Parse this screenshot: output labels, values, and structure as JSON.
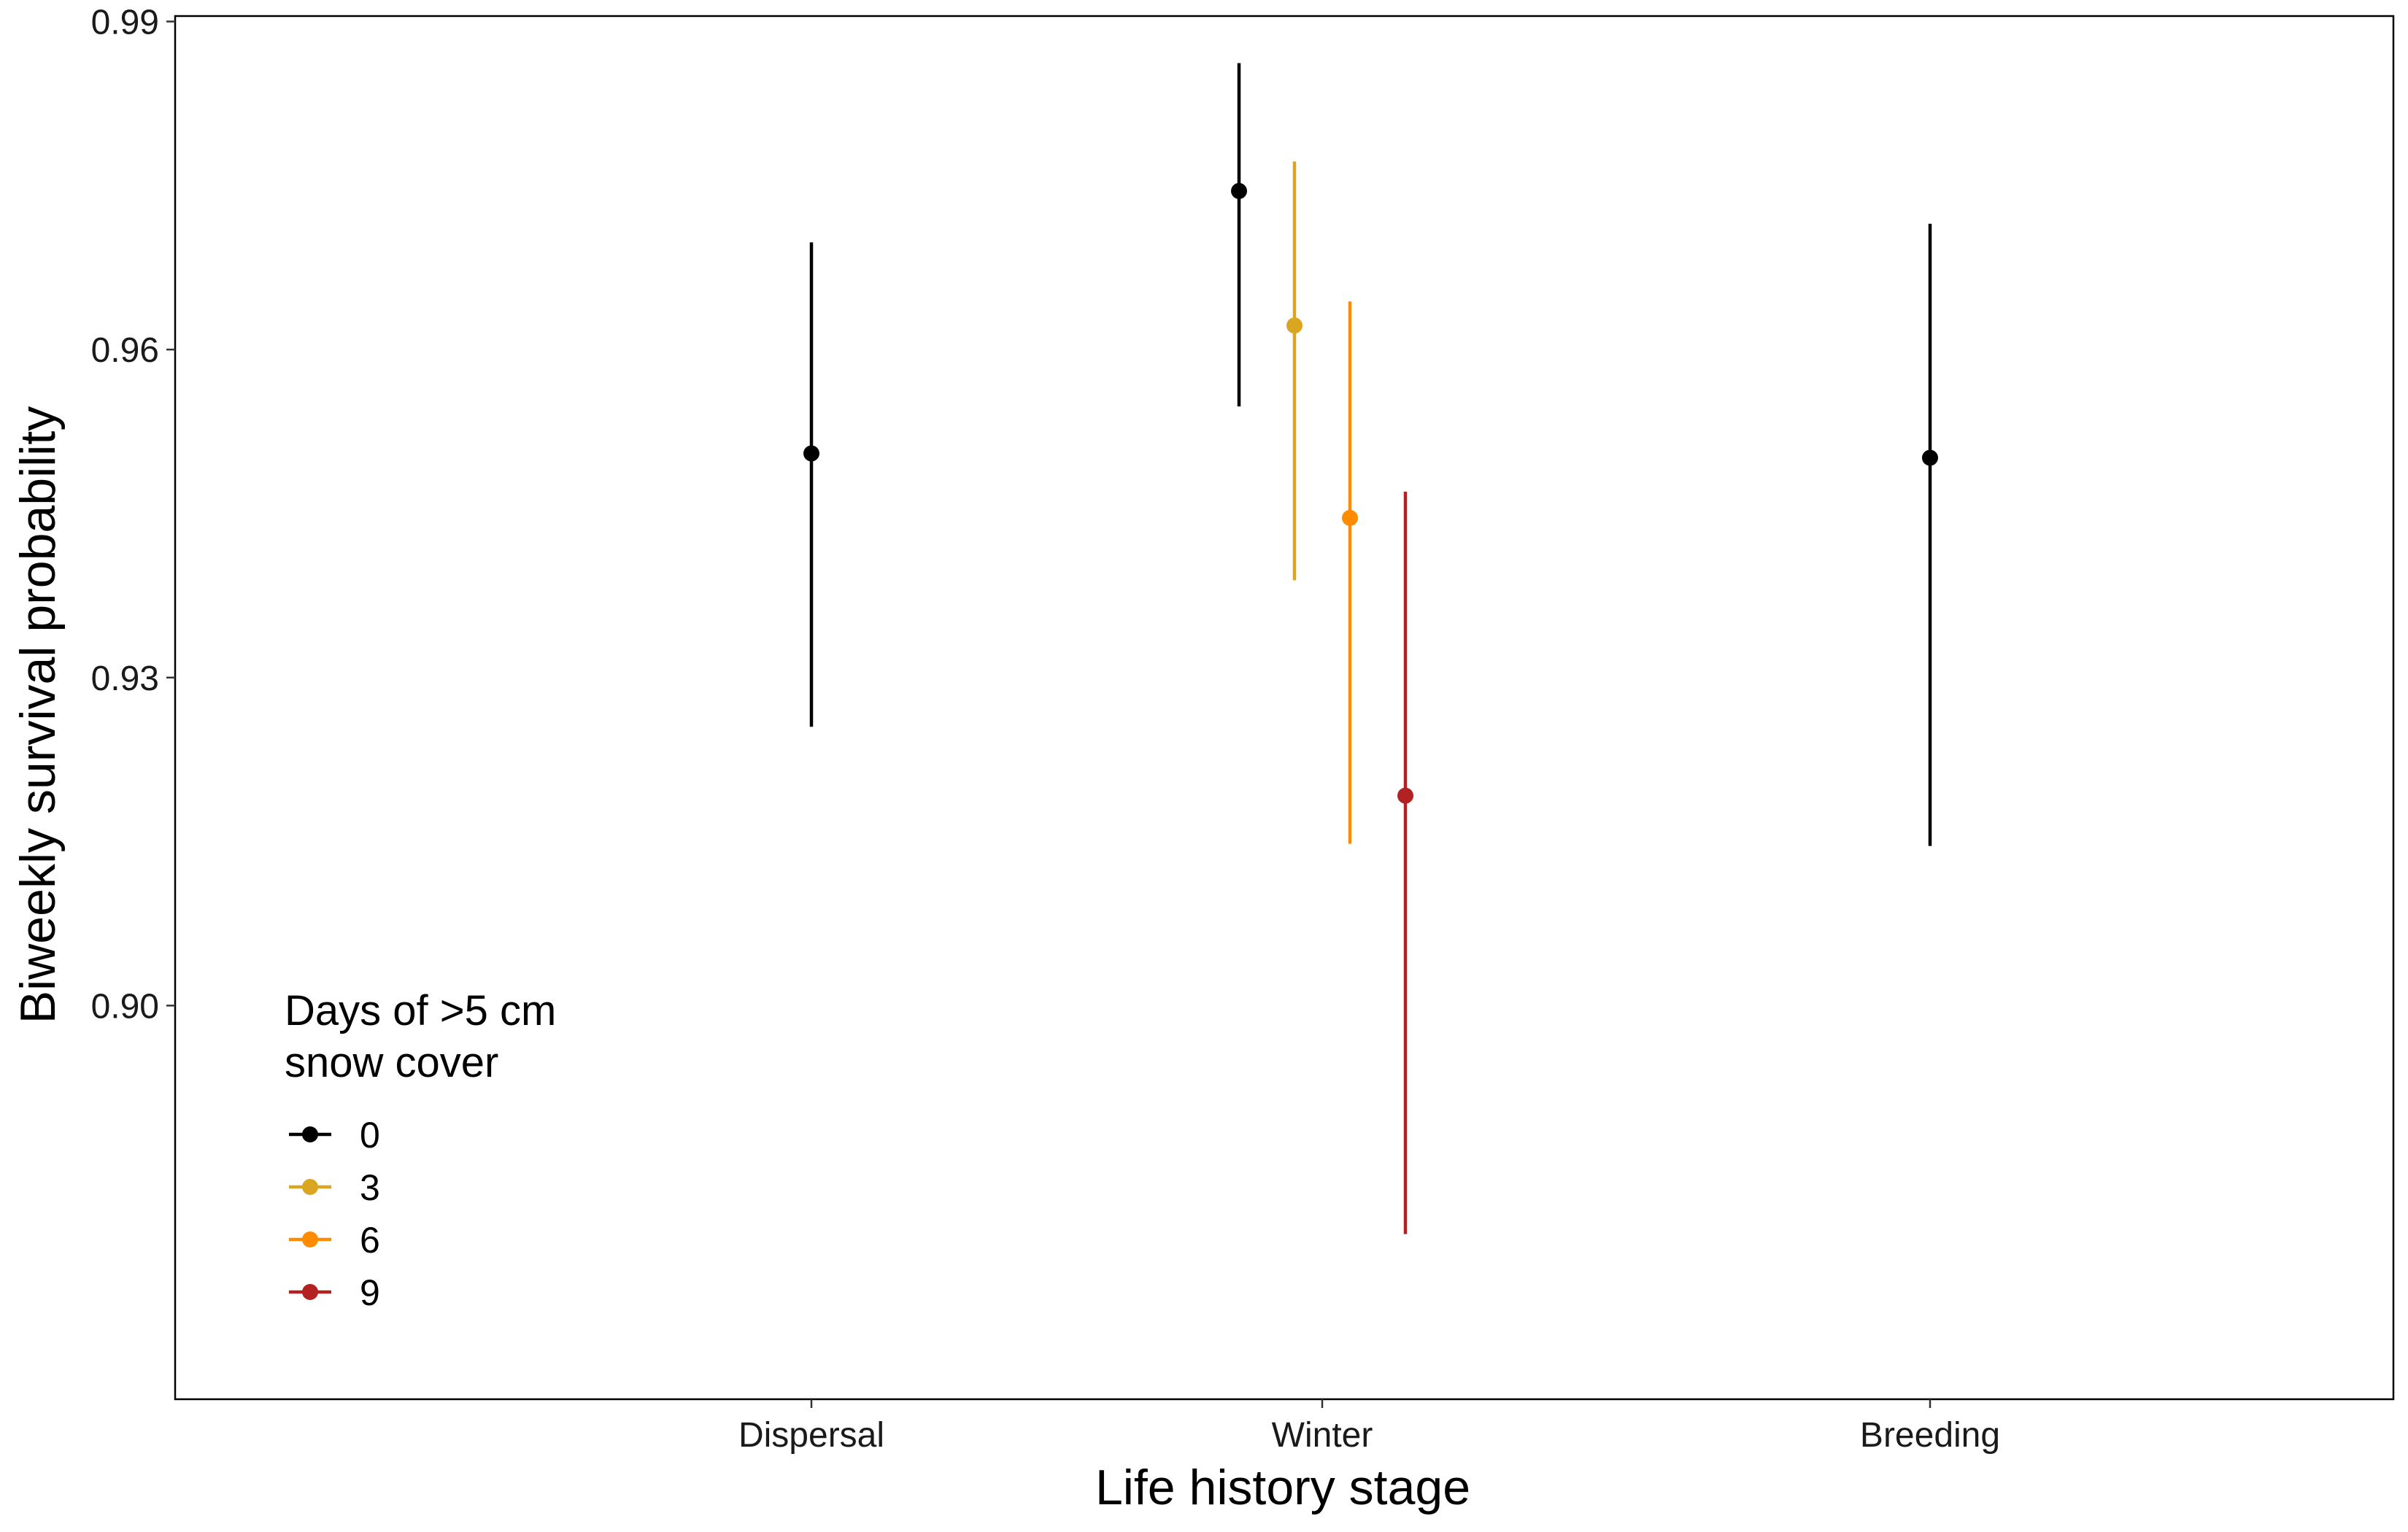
{
  "chart_data": {
    "type": "scatter",
    "subtype": "pointrange",
    "title": "",
    "xlabel": "Life history stage",
    "ylabel": "Biweekly survival probability",
    "categories": [
      "Dispersal",
      "Winter",
      "Breeding"
    ],
    "ylim": [
      0.864,
      0.9905
    ],
    "yticks": [
      "0.90",
      "0.93",
      "0.96",
      "0.99"
    ],
    "ytick_values": [
      0.9,
      0.93,
      0.96,
      0.99
    ],
    "grid": false,
    "legend": {
      "title_lines": [
        "Days of >5 cm",
        "snow cover"
      ],
      "placement": "bottom-left",
      "entries": [
        "0",
        "3",
        "6",
        "9"
      ]
    },
    "series": [
      {
        "name": "0",
        "color": "#000000",
        "points": [
          {
            "category": "Dispersal",
            "y": 0.9505,
            "lower": 0.9255,
            "upper": 0.9698
          },
          {
            "category": "Winter",
            "y": 0.9745,
            "lower": 0.9548,
            "upper": 0.9862
          },
          {
            "category": "Breeding",
            "y": 0.9501,
            "lower": 0.9146,
            "upper": 0.9715
          }
        ]
      },
      {
        "name": "3",
        "color": "#DAA520",
        "points": [
          {
            "category": "Winter",
            "y": 0.9622,
            "lower": 0.9389,
            "upper": 0.9772
          }
        ]
      },
      {
        "name": "6",
        "color": "#FF8C00",
        "points": [
          {
            "category": "Winter",
            "y": 0.9446,
            "lower": 0.9148,
            "upper": 0.9644
          }
        ]
      },
      {
        "name": "9",
        "color": "#B22222",
        "points": [
          {
            "category": "Winter",
            "y": 0.9192,
            "lower": 0.8791,
            "upper": 0.947
          }
        ]
      }
    ]
  }
}
